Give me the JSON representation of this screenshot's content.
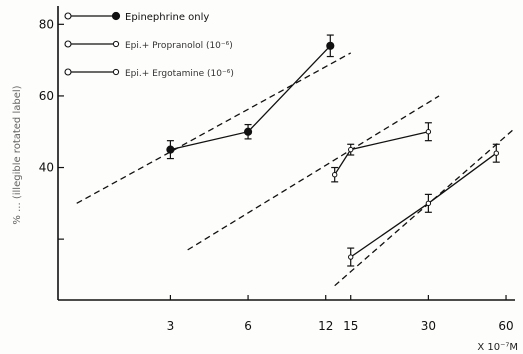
{
  "chart_data": {
    "type": "line",
    "title": "",
    "xlabel": "X 10⁻⁷M",
    "ylabel": "% ... (illegible rotated label)",
    "x_scale": "log",
    "x_ticks": [
      3,
      6,
      12,
      15,
      30,
      60
    ],
    "x_tick_labels": [
      "3",
      "6",
      "12",
      "15",
      "30",
      "60"
    ],
    "y_ticks": [
      40,
      60,
      80
    ],
    "y_tick_labels": [
      "40",
      "60",
      "80"
    ],
    "xlim": [
      1.1,
      65
    ],
    "ylim": [
      3,
      84
    ],
    "legend": [
      {
        "label": "Epinephrine only",
        "marker": "filled-circle"
      },
      {
        "label": "Epi.+ Propranolol (10⁻⁶)",
        "marker": "open-circle"
      },
      {
        "label": "Epi.+ Ergotamine (10⁻⁶)",
        "marker": "open-circle"
      }
    ],
    "series": [
      {
        "marker": "filled-circle",
        "points": [
          {
            "x": 3,
            "y": 45,
            "err": 2.5
          },
          {
            "x": 6,
            "y": 50,
            "err": 2.0
          },
          {
            "x": 12.5,
            "y": 74,
            "err": 3.0
          }
        ],
        "fit": [
          [
            1.3,
            30
          ],
          [
            15,
            72
          ]
        ]
      },
      {
        "marker": "open-circle",
        "points": [
          {
            "x": 13,
            "y": 38,
            "err": 2.0
          },
          {
            "x": 15,
            "y": 45,
            "err": 1.5
          },
          {
            "x": 30,
            "y": 50,
            "err": 2.5
          }
        ],
        "fit": [
          [
            3.5,
            17
          ],
          [
            33,
            60
          ]
        ]
      },
      {
        "marker": "open-circle",
        "points": [
          {
            "x": 15,
            "y": 15,
            "err": 2.5
          },
          {
            "x": 30,
            "y": 30,
            "err": 2.5
          },
          {
            "x": 55,
            "y": 44,
            "err": 2.5
          }
        ],
        "fit": [
          [
            13,
            7
          ],
          [
            65,
            51
          ]
        ]
      }
    ]
  }
}
